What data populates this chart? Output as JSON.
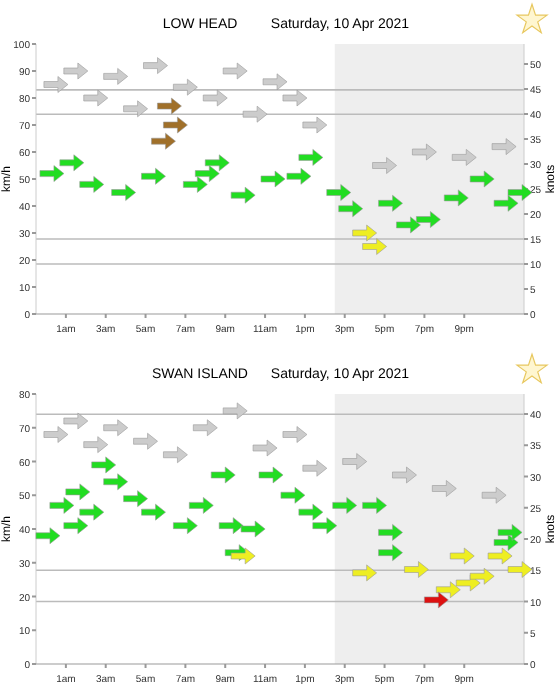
{
  "chart_data": [
    {
      "type": "scatter",
      "title": "LOW HEAD",
      "subtitle": "Saturday, 10 Apr 2021",
      "ylabel": "km/h",
      "y2label": "knots",
      "xlim": [
        "2021-04-09T23:30",
        "2021-04-11T00:00"
      ],
      "xticks": [
        {
          "value": "2021-04-10T01:00",
          "label": "1am"
        },
        {
          "value": "2021-04-10T03:00",
          "label": "3am"
        },
        {
          "value": "2021-04-10T05:00",
          "label": "5am"
        },
        {
          "value": "2021-04-10T07:00",
          "label": "7am"
        },
        {
          "value": "2021-04-10T09:00",
          "label": "9am"
        },
        {
          "value": "2021-04-10T11:00",
          "label": "11am"
        },
        {
          "value": "2021-04-10T13:00",
          "label": "1pm"
        },
        {
          "value": "2021-04-10T15:00",
          "label": "3pm"
        },
        {
          "value": "2021-04-10T17:00",
          "label": "5pm"
        },
        {
          "value": "2021-04-10T19:00",
          "label": "7pm"
        },
        {
          "value": "2021-04-10T21:00",
          "label": "9pm"
        }
      ],
      "ylim": [
        0,
        100
      ],
      "yticks": [
        0,
        10,
        20,
        30,
        40,
        50,
        60,
        70,
        80,
        90,
        100
      ],
      "y2lim": [
        0,
        54
      ],
      "y2ticks": [
        0,
        5,
        10,
        15,
        20,
        25,
        30,
        35,
        40,
        45,
        50
      ],
      "ref_lines": [
        {
          "axis": "y",
          "value": 18.5,
          "color": "#bbbbbb"
        },
        {
          "axis": "y",
          "value": 27.8,
          "color": "#bbbbbb"
        },
        {
          "axis": "y",
          "value": 74,
          "color": "#bbbbbb"
        },
        {
          "axis": "y",
          "value": 83,
          "color": "#bbbbbb"
        }
      ],
      "bands": [
        {
          "axis": "x",
          "from": "2021-04-10T14:30",
          "to": "2021-04-11T00:00",
          "color": "#eeeeee"
        }
      ],
      "series": [
        {
          "color": "#cccccc",
          "x": [
            "2021-04-10T00:30",
            "2021-04-10T01:30",
            "2021-04-10T02:30",
            "2021-04-10T03:30",
            "2021-04-10T04:30",
            "2021-04-10T05:30",
            "2021-04-10T07:00",
            "2021-04-10T08:30",
            "2021-04-10T09:30",
            "2021-04-10T10:30",
            "2021-04-10T11:30",
            "2021-04-10T12:30",
            "2021-04-10T13:30",
            "2021-04-10T17:00",
            "2021-04-10T19:00",
            "2021-04-10T21:00",
            "2021-04-10T23:00"
          ],
          "values": [
            85,
            90,
            80,
            88,
            76,
            92,
            84,
            80,
            90,
            74,
            86,
            80,
            70,
            55,
            60,
            58,
            62
          ]
        },
        {
          "color": "#22dd22",
          "x": [
            "2021-04-10T00:18",
            "2021-04-10T01:18",
            "2021-04-10T02:18",
            "2021-04-10T03:54",
            "2021-04-10T05:24",
            "2021-04-10T07:30",
            "2021-04-10T08:06",
            "2021-04-10T08:36",
            "2021-04-10T09:54",
            "2021-04-10T11:24",
            "2021-04-10T12:42",
            "2021-04-10T13:18",
            "2021-04-10T14:42",
            "2021-04-10T15:18",
            "2021-04-10T17:18",
            "2021-04-10T18:12",
            "2021-04-10T19:12",
            "2021-04-10T20:36",
            "2021-04-10T21:54",
            "2021-04-10T23:06",
            "2021-04-10T23:48"
          ],
          "values": [
            52,
            56,
            48,
            45,
            51,
            48,
            52,
            56,
            44,
            50,
            51,
            58,
            45,
            39,
            41,
            33,
            35,
            43,
            50,
            41,
            45
          ]
        },
        {
          "colors": [
            "#eeee22",
            "#eeee22",
            "#a0702a",
            "#a0702a",
            "#a0702a"
          ],
          "x": [
            "2021-04-10T16:00",
            "2021-04-10T16:30",
            "2021-04-10T06:12",
            "2021-04-10T06:30",
            "2021-04-10T05:54"
          ],
          "values": [
            30,
            25,
            77,
            70,
            64
          ]
        }
      ]
    },
    {
      "type": "scatter",
      "title": "SWAN ISLAND",
      "subtitle": "Saturday, 10 Apr 2021",
      "ylabel": "km/h",
      "y2label": "knots",
      "xlim": [
        "2021-04-09T23:30",
        "2021-04-11T00:00"
      ],
      "xticks": [
        {
          "value": "2021-04-10T01:00",
          "label": "1am"
        },
        {
          "value": "2021-04-10T03:00",
          "label": "3am"
        },
        {
          "value": "2021-04-10T05:00",
          "label": "5am"
        },
        {
          "value": "2021-04-10T07:00",
          "label": "7am"
        },
        {
          "value": "2021-04-10T09:00",
          "label": "9am"
        },
        {
          "value": "2021-04-10T11:00",
          "label": "11am"
        },
        {
          "value": "2021-04-10T13:00",
          "label": "1pm"
        },
        {
          "value": "2021-04-10T15:00",
          "label": "3pm"
        },
        {
          "value": "2021-04-10T17:00",
          "label": "5pm"
        },
        {
          "value": "2021-04-10T19:00",
          "label": "7pm"
        },
        {
          "value": "2021-04-10T21:00",
          "label": "9pm"
        }
      ],
      "ylim": [
        0,
        80
      ],
      "yticks": [
        0,
        10,
        20,
        30,
        40,
        50,
        60,
        70,
        80
      ],
      "y2lim": [
        0,
        43.2
      ],
      "y2ticks": [
        0,
        5,
        10,
        15,
        20,
        25,
        30,
        35,
        40
      ],
      "ref_lines": [
        {
          "axis": "y",
          "value": 18.5,
          "color": "#bbbbbb"
        },
        {
          "axis": "y",
          "value": 27.8,
          "color": "#bbbbbb"
        },
        {
          "axis": "y",
          "value": 74,
          "color": "#bbbbbb"
        }
      ],
      "bands": [
        {
          "axis": "x",
          "from": "2021-04-10T14:30",
          "to": "2021-04-11T00:00",
          "color": "#eeeeee"
        }
      ],
      "series": [
        {
          "color": "#cccccc",
          "x": [
            "2021-04-10T00:30",
            "2021-04-10T01:30",
            "2021-04-10T02:30",
            "2021-04-10T03:30",
            "2021-04-10T05:00",
            "2021-04-10T06:30",
            "2021-04-10T08:00",
            "2021-04-10T09:30",
            "2021-04-10T11:00",
            "2021-04-10T12:30",
            "2021-04-10T13:30",
            "2021-04-10T15:30",
            "2021-04-10T18:00",
            "2021-04-10T20:00",
            "2021-04-10T22:30"
          ],
          "values": [
            68,
            72,
            65,
            70,
            66,
            62,
            70,
            75,
            64,
            68,
            58,
            60,
            56,
            52,
            50
          ]
        },
        {
          "color": "#22dd22",
          "x": [
            "2021-04-10T00:06",
            "2021-04-10T00:48",
            "2021-04-10T01:30",
            "2021-04-10T01:36",
            "2021-04-10T02:18",
            "2021-04-10T02:54",
            "2021-04-10T03:30",
            "2021-04-10T04:30",
            "2021-04-10T05:24",
            "2021-04-10T07:00",
            "2021-04-10T07:48",
            "2021-04-10T08:54",
            "2021-04-10T09:18",
            "2021-04-10T09:36",
            "2021-04-10T10:24",
            "2021-04-10T11:18",
            "2021-04-10T12:24",
            "2021-04-10T13:18",
            "2021-04-10T14:00",
            "2021-04-10T15:00",
            "2021-04-10T16:30",
            "2021-04-10T17:18",
            "2021-04-10T17:18",
            "2021-04-10T23:06",
            "2021-04-10T23:18"
          ],
          "values": [
            38,
            47,
            41,
            51,
            45,
            59,
            54,
            49,
            45,
            41,
            47,
            56,
            41,
            33,
            40,
            56,
            50,
            45,
            41,
            47,
            47,
            39,
            33,
            36,
            39
          ]
        },
        {
          "colors": [
            "#eeee22",
            "#eeee22",
            "#eeee22",
            "#eeee22",
            "#eeee22",
            "#eeee22",
            "#eeee22",
            "#eeee22",
            "#eeee22",
            "#dd1111"
          ],
          "x": [
            "2021-04-10T09:54",
            "2021-04-10T16:00",
            "2021-04-10T18:36",
            "2021-04-10T20:54",
            "2021-04-10T21:12",
            "2021-04-10T21:54",
            "2021-04-10T22:48",
            "2021-04-10T23:48",
            "2021-04-10T20:12",
            "2021-04-10T19:36"
          ],
          "values": [
            32,
            27,
            28,
            32,
            24,
            26,
            32,
            28,
            22,
            19
          ]
        }
      ]
    }
  ]
}
